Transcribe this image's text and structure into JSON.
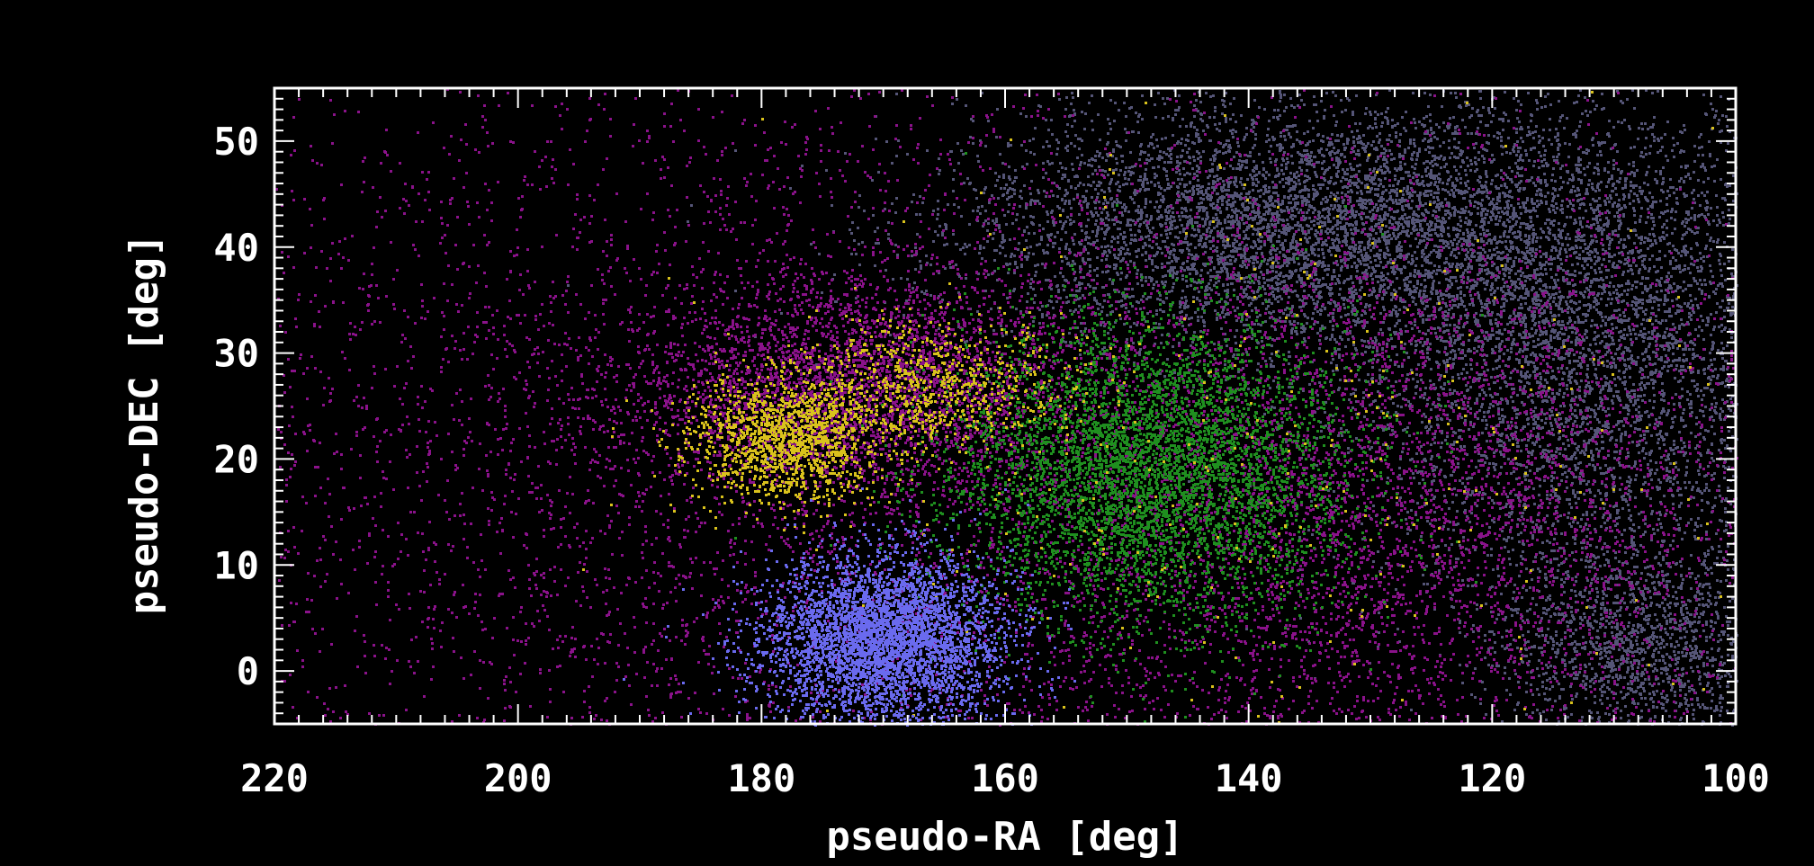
{
  "chart_data": {
    "type": "scatter",
    "title": "",
    "xlabel": "pseudo-RA [deg]",
    "ylabel": "pseudo-DEC [deg]",
    "xlim": [
      220,
      100
    ],
    "ylim": [
      -5,
      55
    ],
    "x_reversed": true,
    "grid": false,
    "legend": "none",
    "background": "#000000",
    "axis_color": "#ffffff",
    "xticks": [
      220,
      200,
      180,
      160,
      140,
      120,
      100
    ],
    "yticks": [
      0,
      10,
      20,
      30,
      40,
      50
    ],
    "xtick_labels": [
      "220",
      "200",
      "180",
      "160",
      "140",
      "120",
      "100"
    ],
    "ytick_labels": [
      "0",
      "10",
      "20",
      "30",
      "40",
      "50"
    ],
    "series": [
      {
        "color": "#555577",
        "clusters": [
          {
            "x_center": 136,
            "y_center": 42,
            "x_sigma": 14,
            "y_sigma": 6,
            "count": 9000
          },
          {
            "x_center": 112,
            "y_center": 30,
            "x_sigma": 10,
            "y_sigma": 12,
            "count": 7000
          },
          {
            "x_center": 108,
            "y_center": 2,
            "x_sigma": 6,
            "y_sigma": 5,
            "count": 1500
          }
        ]
      },
      {
        "color": "#8a128a",
        "clusters": [
          {
            "x_center": 130,
            "y_center": 15,
            "x_sigma": 18,
            "y_sigma": 14,
            "count": 22000
          },
          {
            "x_center": 172,
            "y_center": 27,
            "x_sigma": 9,
            "y_sigma": 5,
            "count": 3000
          },
          {
            "x_center": 185,
            "y_center": 20,
            "x_sigma": 30,
            "y_sigma": 22,
            "count": 6000
          }
        ]
      },
      {
        "color": "#1f8f1f",
        "clusters": [
          {
            "x_center": 148,
            "y_center": 19,
            "x_sigma": 8,
            "y_sigma": 7,
            "count": 5000
          }
        ]
      },
      {
        "color": "#d9c21c",
        "clusters": [
          {
            "x_center": 178,
            "y_center": 22,
            "x_sigma": 4,
            "y_sigma": 3,
            "count": 1400
          },
          {
            "x_center": 166,
            "y_center": 27,
            "x_sigma": 5,
            "y_sigma": 3,
            "count": 700
          },
          {
            "x_center": 140,
            "y_center": 22,
            "x_sigma": 20,
            "y_sigma": 15,
            "count": 400
          }
        ]
      },
      {
        "color": "#6a6aee",
        "clusters": [
          {
            "x_center": 170,
            "y_center": 3,
            "x_sigma": 5,
            "y_sigma": 4,
            "count": 4000
          }
        ]
      }
    ]
  }
}
